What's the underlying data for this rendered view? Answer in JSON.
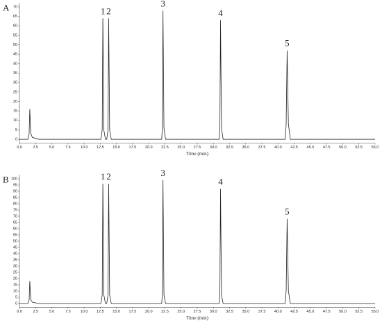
{
  "chart_data": [
    {
      "type": "line",
      "panel_label": "A",
      "xlabel": "Time (min)",
      "color": "#222222",
      "x": [
        0,
        1.3,
        1.5,
        1.6,
        1.75,
        2.0,
        3.0,
        12.6,
        12.8,
        12.9,
        13.05,
        13.3,
        13.5,
        13.7,
        13.8,
        13.95,
        14.2,
        22.0,
        22.1,
        22.2,
        22.35,
        22.6,
        30.9,
        31.0,
        31.1,
        31.25,
        31.5,
        41.1,
        41.25,
        41.4,
        41.6,
        41.9,
        55
      ],
      "values": [
        0,
        0,
        3,
        16,
        3,
        1,
        0,
        0,
        5,
        64,
        5,
        0,
        0,
        5,
        64,
        5,
        0,
        0,
        6,
        68,
        6,
        0,
        0,
        6,
        63,
        6,
        0,
        0,
        8,
        47,
        8,
        0,
        0
      ],
      "xlim": [
        0,
        55
      ],
      "ylim": [
        -2,
        72
      ],
      "xticks": [
        {
          "value": 0,
          "label": "0.0"
        },
        2.5,
        {
          "value": 5,
          "label": "5.0"
        },
        7.5,
        {
          "value": 10,
          "label": "10.0"
        },
        12.5,
        {
          "value": 15,
          "label": "15.0"
        },
        17.5,
        {
          "value": 20,
          "label": "20.0"
        },
        22.5,
        {
          "value": 25,
          "label": "25.0"
        },
        27.5,
        {
          "value": 30,
          "label": "30.0"
        },
        32.5,
        {
          "value": 35,
          "label": "35.0"
        },
        37.5,
        {
          "value": 40,
          "label": "40.0"
        },
        42.5,
        {
          "value": 45,
          "label": "45.0"
        },
        47.5,
        {
          "value": 50,
          "label": "50.0"
        },
        52.5,
        {
          "value": 55,
          "label": "55.0"
        }
      ],
      "yticks": [
        0,
        5,
        10,
        15,
        20,
        25,
        30,
        35,
        40,
        45,
        50,
        55,
        60,
        65,
        70
      ],
      "annotations": [
        {
          "text": "1",
          "x": 12.9,
          "y": 64
        },
        {
          "text": "2",
          "x": 13.8,
          "y": 64
        },
        {
          "text": "3",
          "x": 22.2,
          "y": 68
        },
        {
          "text": "4",
          "x": 31.1,
          "y": 63
        },
        {
          "text": "5",
          "x": 41.4,
          "y": 47
        }
      ]
    },
    {
      "type": "line",
      "panel_label": "B",
      "xlabel": "Time (min)",
      "color": "#222222",
      "x": [
        0,
        1.3,
        1.5,
        1.6,
        1.75,
        2.0,
        3.0,
        12.6,
        12.8,
        12.9,
        13.05,
        13.3,
        13.5,
        13.7,
        13.8,
        13.95,
        14.2,
        22.0,
        22.1,
        22.2,
        22.35,
        22.6,
        30.9,
        31.0,
        31.1,
        31.25,
        31.5,
        41.1,
        41.25,
        41.4,
        41.6,
        41.9,
        55
      ],
      "values": [
        0,
        0,
        3,
        18,
        3,
        1,
        0,
        0,
        7,
        96,
        7,
        0,
        0,
        7,
        96,
        7,
        0,
        0,
        7,
        99,
        7,
        0,
        0,
        7,
        92,
        7,
        0,
        0,
        10,
        68,
        10,
        0,
        0
      ],
      "xlim": [
        0,
        55
      ],
      "ylim": [
        -3,
        103
      ],
      "xticks": [
        {
          "value": 0,
          "label": "0.0"
        },
        2.5,
        {
          "value": 5,
          "label": "5.0"
        },
        7.5,
        {
          "value": 10,
          "label": "10.0"
        },
        12.5,
        {
          "value": 15,
          "label": "15.0"
        },
        17.5,
        {
          "value": 20,
          "label": "20.0"
        },
        22.5,
        {
          "value": 25,
          "label": "25.0"
        },
        27.5,
        {
          "value": 30,
          "label": "30.0"
        },
        32.5,
        {
          "value": 35,
          "label": "35.0"
        },
        37.5,
        {
          "value": 40,
          "label": "40.0"
        },
        42.5,
        {
          "value": 45,
          "label": "45.0"
        },
        47.5,
        {
          "value": 50,
          "label": "50.0"
        },
        52.5,
        {
          "value": 55,
          "label": "55.0"
        }
      ],
      "yticks": [
        0,
        5,
        10,
        15,
        20,
        25,
        30,
        35,
        40,
        45,
        50,
        55,
        60,
        65,
        70,
        75,
        80,
        85,
        90,
        95,
        100
      ],
      "annotations": [
        {
          "text": "1",
          "x": 12.9,
          "y": 96
        },
        {
          "text": "2",
          "x": 13.8,
          "y": 96
        },
        {
          "text": "3",
          "x": 22.2,
          "y": 99
        },
        {
          "text": "4",
          "x": 31.1,
          "y": 92
        },
        {
          "text": "5",
          "x": 41.4,
          "y": 68
        }
      ]
    }
  ]
}
